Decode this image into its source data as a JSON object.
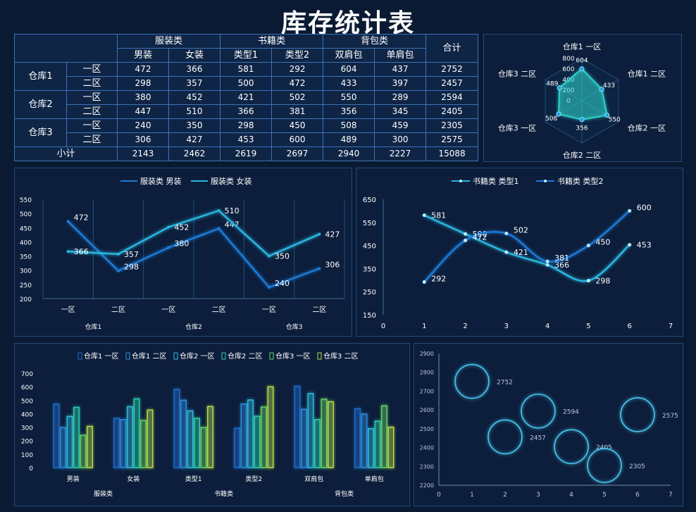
{
  "title": "库存统计表",
  "table": {
    "corner": "",
    "groups": [
      "服装类",
      "书籍类",
      "背包类"
    ],
    "total_header": "合计",
    "subheaders": [
      "男装",
      "女装",
      "类型1",
      "类型2",
      "双肩包",
      "单肩包"
    ],
    "warehouses": [
      "仓库1",
      "仓库2",
      "仓库3"
    ],
    "zones": [
      "一区",
      "二区"
    ],
    "rows": [
      [
        "472",
        "366",
        "581",
        "292",
        "604",
        "437",
        "2752"
      ],
      [
        "298",
        "357",
        "500",
        "472",
        "433",
        "397",
        "2457"
      ],
      [
        "380",
        "452",
        "421",
        "502",
        "550",
        "289",
        "2594"
      ],
      [
        "447",
        "510",
        "366",
        "381",
        "356",
        "345",
        "2405"
      ],
      [
        "240",
        "350",
        "298",
        "450",
        "508",
        "459",
        "2305"
      ],
      [
        "306",
        "427",
        "453",
        "600",
        "489",
        "300",
        "2575"
      ]
    ],
    "subtotal_label": "小计",
    "subtotal": [
      "2143",
      "2462",
      "2619",
      "2697",
      "2940",
      "2227",
      "15088"
    ]
  },
  "colors": {
    "background": "#0b1a33",
    "panel": "#0c1e3b",
    "border": "#1f4a7a",
    "cell_border": "#3a74b8",
    "line_blue": "#1f7ad6",
    "line_cyan": "#29b6e0",
    "radar": "#2fd1c8"
  },
  "chart_data": [
    {
      "id": "radar",
      "type": "radar",
      "indicators": [
        "仓库1 一区",
        "仓库1 二区",
        "仓库2 一区",
        "仓库2 二区",
        "仓库3 一区",
        "仓库3 二区"
      ],
      "values": [
        604,
        433,
        550,
        356,
        508,
        489
      ],
      "ticks": [
        "0",
        "200",
        "400",
        "600",
        "800"
      ],
      "max": 800
    },
    {
      "id": "clothing",
      "type": "line",
      "categories": [
        "一区",
        "二区",
        "一区",
        "二区",
        "一区",
        "二区"
      ],
      "groups": [
        "仓库1",
        "仓库2",
        "仓库3"
      ],
      "series": [
        {
          "name": "服装类 男装",
          "values": [
            472,
            298,
            380,
            447,
            240,
            306
          ]
        },
        {
          "name": "服装类 女装",
          "values": [
            366,
            357,
            452,
            510,
            350,
            427
          ]
        }
      ],
      "yticks": [
        "550",
        "500",
        "450",
        "400",
        "350",
        "300",
        "250",
        "200"
      ],
      "ylim": [
        200,
        550
      ]
    },
    {
      "id": "books",
      "type": "line",
      "xticks": [
        "0",
        "1",
        "2",
        "3",
        "4",
        "5",
        "6",
        "7"
      ],
      "xlim": [
        0,
        7
      ],
      "series": [
        {
          "name": "书籍类 类型1",
          "values": [
            581,
            500,
            421,
            366,
            298,
            453
          ]
        },
        {
          "name": "书籍类 类型2",
          "values": [
            292,
            472,
            502,
            381,
            450,
            600
          ]
        }
      ],
      "yticks": [
        "650",
        "550",
        "450",
        "350",
        "250",
        "150"
      ],
      "ylim": [
        150,
        650
      ]
    },
    {
      "id": "bars",
      "type": "bar",
      "categories": [
        "男装",
        "女装",
        "类型1",
        "类型2",
        "双肩包",
        "单肩包"
      ],
      "groups": [
        "服装类",
        "书籍类",
        "背包类"
      ],
      "series": [
        {
          "name": "仓库1 一区",
          "values": [
            472,
            366,
            581,
            292,
            604,
            437
          ],
          "color": "#1f6fd0"
        },
        {
          "name": "仓库1 二区",
          "values": [
            298,
            357,
            500,
            472,
            433,
            397
          ],
          "color": "#2f8fe0"
        },
        {
          "name": "仓库2 一区",
          "values": [
            380,
            452,
            421,
            502,
            550,
            289
          ],
          "color": "#30bfe0"
        },
        {
          "name": "仓库2 二区",
          "values": [
            447,
            510,
            366,
            381,
            356,
            345
          ],
          "color": "#2ed6b0"
        },
        {
          "name": "仓库3 一区",
          "values": [
            240,
            350,
            298,
            450,
            508,
            459
          ],
          "color": "#6ad868"
        },
        {
          "name": "仓库3 二区",
          "values": [
            306,
            427,
            453,
            600,
            489,
            300
          ],
          "color": "#b8e04a"
        }
      ],
      "yticks": [
        "700",
        "600",
        "500",
        "400",
        "300",
        "200",
        "100",
        "0"
      ],
      "ylim": [
        0,
        700
      ]
    },
    {
      "id": "bubble",
      "type": "scatter",
      "points": [
        {
          "x": 1,
          "y": 2752,
          "label": "2752"
        },
        {
          "x": 2,
          "y": 2457,
          "label": "2457"
        },
        {
          "x": 3,
          "y": 2594,
          "label": "2594"
        },
        {
          "x": 4,
          "y": 2405,
          "label": "2405"
        },
        {
          "x": 5,
          "y": 2305,
          "label": "2305"
        },
        {
          "x": 6,
          "y": 2575,
          "label": "2575"
        }
      ],
      "xticks": [
        "0",
        "1",
        "2",
        "3",
        "4",
        "5",
        "6",
        "7"
      ],
      "xlim": [
        0,
        7
      ],
      "yticks": [
        "2900",
        "2800",
        "2700",
        "2600",
        "2500",
        "2400",
        "2300",
        "2200"
      ],
      "ylim": [
        2200,
        2900
      ]
    }
  ]
}
